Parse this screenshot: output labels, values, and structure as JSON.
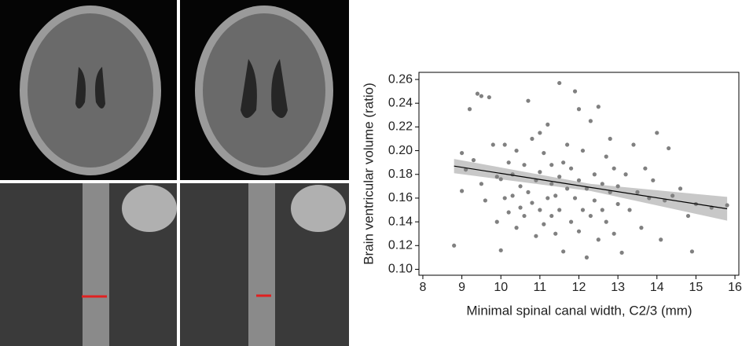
{
  "chart_data": {
    "type": "scatter",
    "x_label": "Minimal spinal canal width, C2/3 (mm)",
    "y_label": "Brain ventricular volume (ratio)",
    "color": "#808080",
    "x": [
      8.8,
      9.0,
      9.0,
      9.1,
      9.2,
      9.3,
      9.4,
      9.5,
      9.5,
      9.6,
      9.7,
      9.8,
      9.9,
      9.9,
      10.0,
      10.0,
      10.1,
      10.1,
      10.2,
      10.2,
      10.3,
      10.3,
      10.4,
      10.4,
      10.5,
      10.5,
      10.6,
      10.6,
      10.7,
      10.7,
      10.8,
      10.8,
      10.9,
      10.9,
      11.0,
      11.0,
      11.0,
      11.1,
      11.1,
      11.2,
      11.2,
      11.3,
      11.3,
      11.3,
      11.4,
      11.4,
      11.5,
      11.5,
      11.5,
      11.6,
      11.6,
      11.7,
      11.7,
      11.8,
      11.8,
      11.9,
      11.9,
      12.0,
      12.0,
      12.0,
      12.1,
      12.1,
      12.2,
      12.2,
      12.3,
      12.3,
      12.4,
      12.4,
      12.5,
      12.5,
      12.6,
      12.6,
      12.7,
      12.7,
      12.8,
      12.8,
      12.9,
      12.9,
      13.0,
      13.0,
      13.1,
      13.2,
      13.3,
      13.4,
      13.5,
      13.6,
      13.7,
      13.8,
      13.9,
      14.0,
      14.1,
      14.2,
      14.3,
      14.4,
      14.6,
      14.8,
      14.9,
      15.0,
      15.4,
      15.8
    ],
    "y": [
      0.12,
      0.198,
      0.166,
      0.184,
      0.235,
      0.192,
      0.248,
      0.246,
      0.172,
      0.158,
      0.245,
      0.205,
      0.14,
      0.178,
      0.176,
      0.116,
      0.16,
      0.205,
      0.148,
      0.19,
      0.162,
      0.18,
      0.135,
      0.2,
      0.17,
      0.152,
      0.145,
      0.188,
      0.242,
      0.165,
      0.156,
      0.21,
      0.128,
      0.175,
      0.15,
      0.182,
      0.215,
      0.138,
      0.198,
      0.16,
      0.222,
      0.145,
      0.172,
      0.188,
      0.13,
      0.162,
      0.257,
      0.15,
      0.178,
      0.115,
      0.19,
      0.168,
      0.205,
      0.14,
      0.185,
      0.25,
      0.16,
      0.175,
      0.132,
      0.235,
      0.15,
      0.2,
      0.11,
      0.168,
      0.145,
      0.225,
      0.18,
      0.158,
      0.237,
      0.125,
      0.172,
      0.15,
      0.195,
      0.14,
      0.165,
      0.21,
      0.13,
      0.185,
      0.155,
      0.17,
      0.114,
      0.18,
      0.15,
      0.205,
      0.165,
      0.135,
      0.185,
      0.16,
      0.175,
      0.215,
      0.125,
      0.158,
      0.202,
      0.162,
      0.168,
      0.145,
      0.115,
      0.155,
      0.152,
      0.154
    ],
    "fit": {
      "x": [
        8.8,
        12.3,
        15.8
      ],
      "y": [
        0.187,
        0.169,
        0.151
      ],
      "lower": [
        0.181,
        0.166,
        0.141
      ],
      "upper": [
        0.193,
        0.172,
        0.161
      ],
      "color": "#000000",
      "band_color": "#c8c8c8"
    },
    "xlim": [
      7.9,
      16.1
    ],
    "xticks": [
      8,
      9,
      10,
      11,
      12,
      13,
      14,
      15,
      16
    ],
    "ylim": [
      0.095,
      0.266
    ],
    "yticks": [
      {
        "value": 0.1,
        "label": "0.10"
      },
      0.12,
      0.14,
      0.16,
      0.18,
      {
        "value": 0.2,
        "label": "0.20"
      },
      0.22,
      0.24,
      0.26
    ],
    "grid": false
  }
}
